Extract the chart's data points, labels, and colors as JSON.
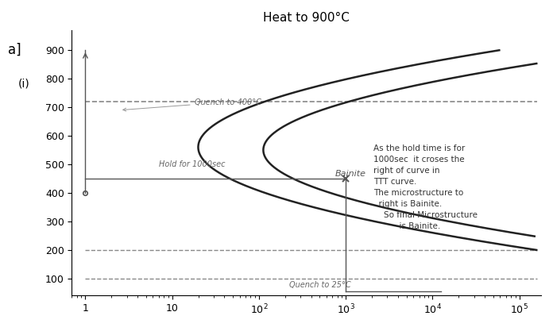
{
  "title": "Heat to 900°C",
  "yticks": [
    100,
    200,
    300,
    400,
    500,
    600,
    700,
    800,
    900
  ],
  "bg_color": "#ffffff",
  "curve_color": "#222222",
  "annot_color": "#555555",
  "dashed_line_color": "#888888",
  "quench_label": "Quench to 400°C",
  "hold_label": "Hold for 1000sec",
  "bainite_label": "Bainite",
  "quench25_label": "Quench to 25°C",
  "annotation_lines": [
    "As the hold time is for",
    "1000sec  it croses the",
    "right of curve in",
    "TTT curve.",
    "The microstructure to",
    "  right is Bainite.",
    "    So final Microstructure",
    "          is Bainite."
  ],
  "left_label": "a]",
  "left_label2": "(i)"
}
